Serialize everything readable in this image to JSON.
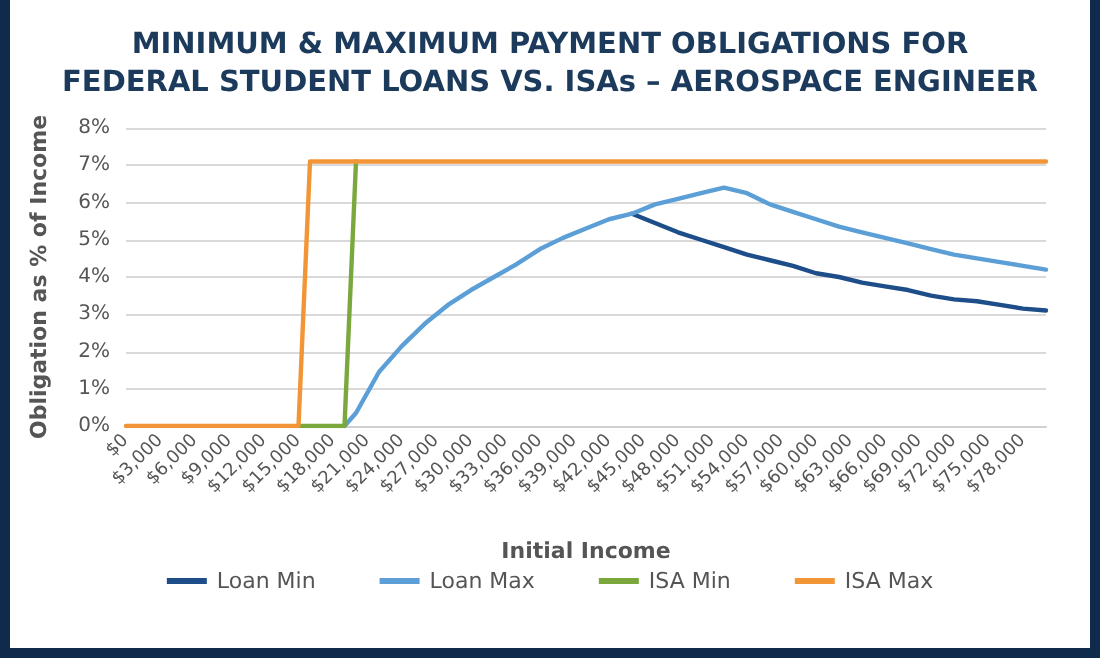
{
  "chart_data": {
    "type": "line",
    "title": "MINIMUM & MAXIMUM PAYMENT OBLIGATIONS FOR\nFEDERAL STUDENT LOANS VS. ISAs – AEROSPACE ENGINEER",
    "xlabel": "Initial Income",
    "ylabel": "Obligation as % of Income",
    "xlim": [
      0,
      80000
    ],
    "xticks": [
      {
        "value": 0,
        "label": "$0"
      },
      {
        "value": 3000,
        "label": "$3,000"
      },
      {
        "value": 6000,
        "label": "$6,000"
      },
      {
        "value": 9000,
        "label": "$9,000"
      },
      {
        "value": 12000,
        "label": "$12,000"
      },
      {
        "value": 15000,
        "label": "$15,000"
      },
      {
        "value": 18000,
        "label": "$18,000"
      },
      {
        "value": 21000,
        "label": "$21,000"
      },
      {
        "value": 24000,
        "label": "$24,000"
      },
      {
        "value": 27000,
        "label": "$27,000"
      },
      {
        "value": 30000,
        "label": "$30,000"
      },
      {
        "value": 33000,
        "label": "$33,000"
      },
      {
        "value": 36000,
        "label": "$36,000"
      },
      {
        "value": 39000,
        "label": "$39,000"
      },
      {
        "value": 42000,
        "label": "$42,000"
      },
      {
        "value": 45000,
        "label": "$45,000"
      },
      {
        "value": 48000,
        "label": "$48,000"
      },
      {
        "value": 51000,
        "label": "$51,000"
      },
      {
        "value": 54000,
        "label": "$54,000"
      },
      {
        "value": 57000,
        "label": "$57,000"
      },
      {
        "value": 60000,
        "label": "$60,000"
      },
      {
        "value": 63000,
        "label": "$63,000"
      },
      {
        "value": 66000,
        "label": "$66,000"
      },
      {
        "value": 69000,
        "label": "$69,000"
      },
      {
        "value": 72000,
        "label": "$72,000"
      },
      {
        "value": 75000,
        "label": "$75,000"
      },
      {
        "value": 78000,
        "label": "$78,000"
      }
    ],
    "ylim": [
      0,
      8
    ],
    "yticks": [
      {
        "value": 0,
        "label": "0%"
      },
      {
        "value": 1,
        "label": "1%"
      },
      {
        "value": 2,
        "label": "2%"
      },
      {
        "value": 3,
        "label": "3%"
      },
      {
        "value": 4,
        "label": "4%"
      },
      {
        "value": 5,
        "label": "5%"
      },
      {
        "value": 6,
        "label": "6%"
      },
      {
        "value": 7,
        "label": "7%"
      },
      {
        "value": 8,
        "label": "8%"
      }
    ],
    "grid": "y",
    "legend": "bottom",
    "series": [
      {
        "name": "Loan Min",
        "color": "#1d4e89",
        "x": [
          44000,
          46000,
          48000,
          50000,
          52000,
          54000,
          56000,
          58000,
          60000,
          62000,
          64000,
          66000,
          68000,
          70000,
          72000,
          74000,
          76000,
          78000,
          80000
        ],
        "values": [
          5.7,
          5.45,
          5.2,
          5.0,
          4.8,
          4.6,
          4.45,
          4.3,
          4.1,
          4.0,
          3.85,
          3.75,
          3.65,
          3.5,
          3.4,
          3.35,
          3.25,
          3.15,
          3.1
        ]
      },
      {
        "name": "Loan Max",
        "color": "#5b9fd6",
        "x": [
          19000,
          20000,
          22000,
          24000,
          26000,
          28000,
          30000,
          32000,
          34000,
          36000,
          38000,
          40000,
          42000,
          44000,
          46000,
          48000,
          50000,
          52000,
          54000,
          56000,
          58000,
          60000,
          62000,
          64000,
          66000,
          68000,
          70000,
          72000,
          74000,
          76000,
          78000,
          80000
        ],
        "values": [
          0,
          0.35,
          1.45,
          2.15,
          2.75,
          3.25,
          3.65,
          4.0,
          4.35,
          4.75,
          5.05,
          5.3,
          5.55,
          5.7,
          5.95,
          6.1,
          6.25,
          6.4,
          6.25,
          5.95,
          5.75,
          5.55,
          5.35,
          5.2,
          5.05,
          4.9,
          4.75,
          4.6,
          4.5,
          4.4,
          4.3,
          4.2
        ]
      },
      {
        "name": "ISA Min",
        "color": "#7aa83c",
        "x": [
          15000,
          19000,
          20000
        ],
        "values": [
          0,
          0,
          7.1
        ]
      },
      {
        "name": "ISA Max",
        "color": "#f29537",
        "x": [
          0,
          15000,
          16000,
          80000
        ],
        "values": [
          0,
          0,
          7.1,
          7.1
        ]
      }
    ]
  }
}
